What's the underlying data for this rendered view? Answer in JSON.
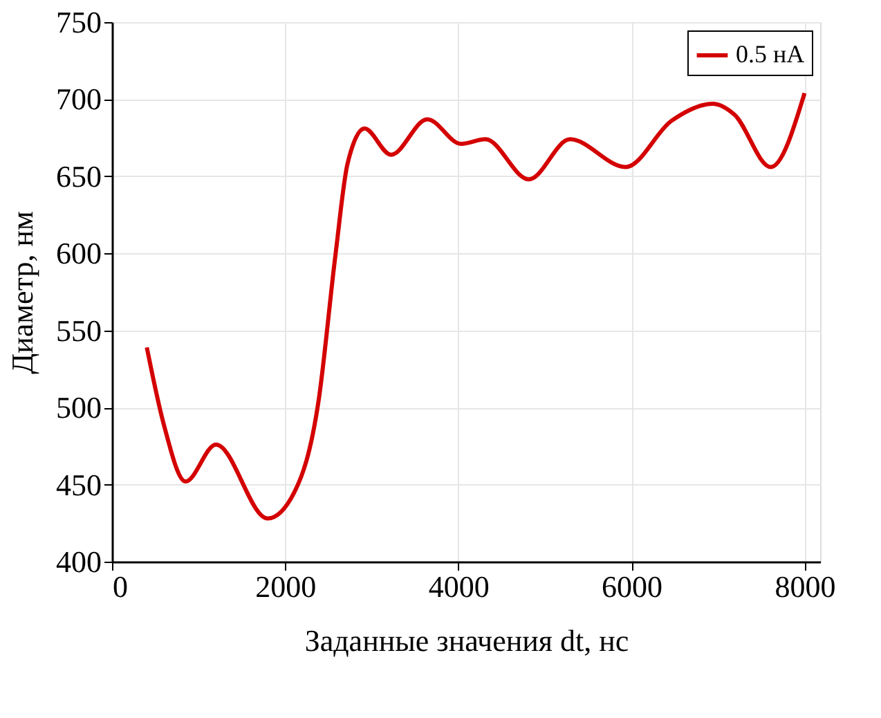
{
  "chart_data": {
    "type": "line",
    "xlabel": "Заданные значения dt, нс",
    "ylabel": "Диаметр, нм",
    "xlim": [
      0,
      8180
    ],
    "ylim": [
      400,
      750
    ],
    "xticks": [
      0,
      2000,
      4000,
      6000,
      8000
    ],
    "yticks": [
      400,
      450,
      500,
      550,
      600,
      650,
      700,
      750
    ],
    "grid": true,
    "legend": "top right",
    "marker": "none",
    "line_style": "solid",
    "series": [
      {
        "name": "0.5 нА",
        "color": "#d40000",
        "x": [
          402,
          598,
          849,
          1201,
          1799,
          2106,
          2385,
          2581,
          2720,
          2916,
          3223,
          3642,
          4033,
          4313,
          4815,
          5290,
          5933,
          6463,
          6938,
          7190,
          7609,
          8000
        ],
        "values": [
          539,
          489,
          452,
          476,
          428,
          445,
          504,
          599,
          658,
          681,
          664,
          687,
          671,
          674,
          648,
          674,
          656,
          686,
          697,
          690,
          656,
          704
        ]
      }
    ]
  }
}
